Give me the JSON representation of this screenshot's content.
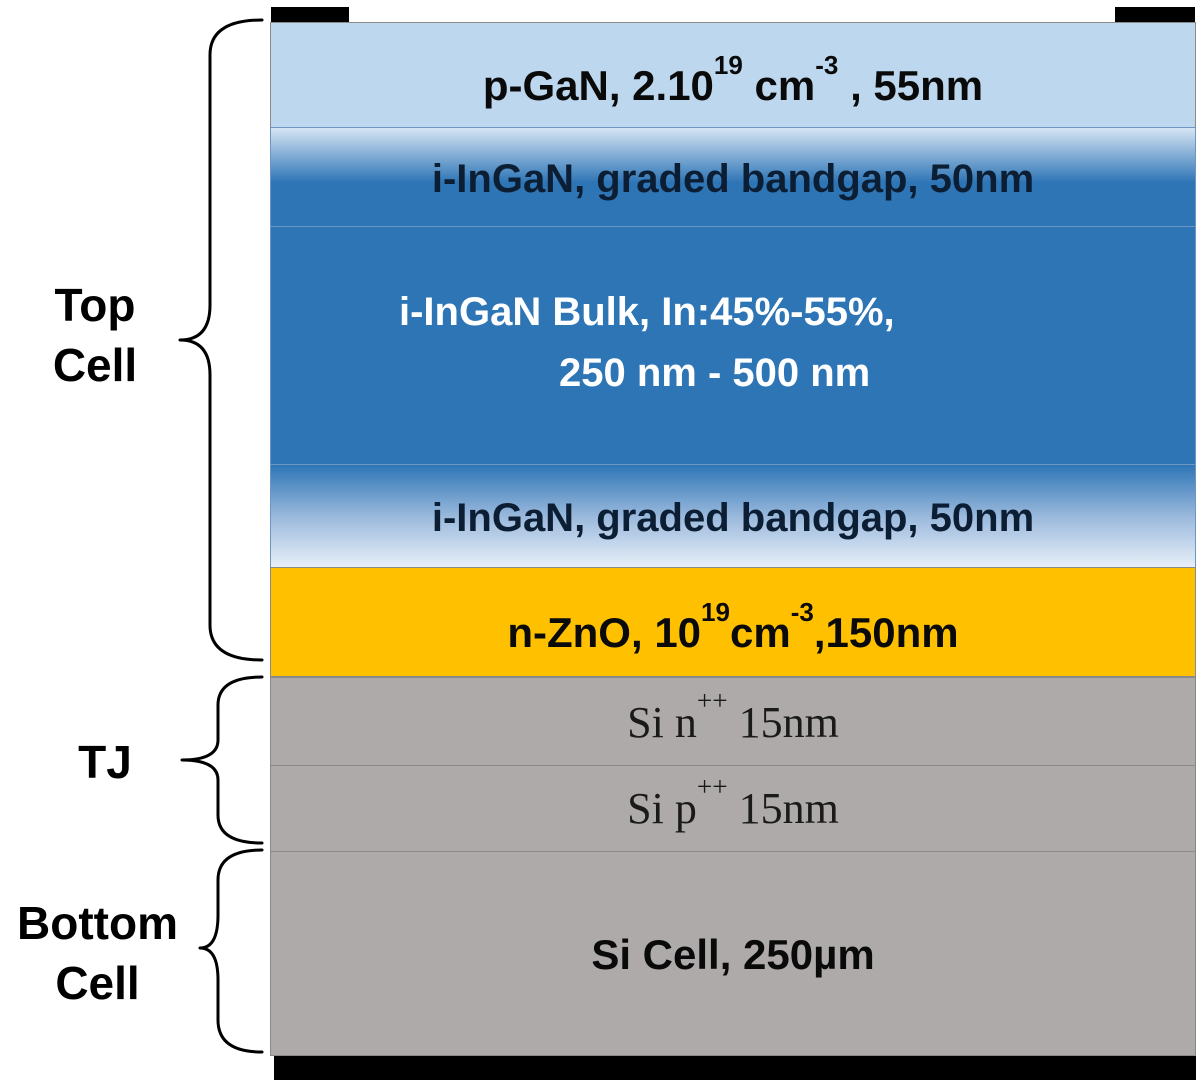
{
  "contacts": {
    "top_left": "metal contact",
    "top_right": "metal contact",
    "bottom": "metal contact"
  },
  "layers": {
    "p_gan": {
      "main": "p-GaN, 2.10",
      "exp1": "19",
      "unit": " cm",
      "exp2": "-3",
      "tail": " , 55nm",
      "color": "#bdd7ee"
    },
    "graded_top": {
      "label": "i-InGaN, graded bandgap, 50nm",
      "color_edge": "#d6e5f4",
      "color_core": "#2e75b6"
    },
    "bulk": {
      "line1": "i-InGaN Bulk, In:45%-55%,",
      "line2": "250 nm - 500 nm",
      "color": "#2e75b6"
    },
    "graded_bottom": {
      "label": "i-InGaN, graded bandgap, 50nm",
      "color_edge": "#e9f0f9",
      "color_core": "#2e75b6"
    },
    "n_zno": {
      "main": "n-ZnO, 10",
      "exp1": "19",
      "unit": "cm",
      "exp2": "-3",
      "tail": ",150nm",
      "color": "#ffc000"
    },
    "si_n": {
      "main": "Si n",
      "sup": "++",
      "tail": " 15nm",
      "color": "#aeaaaa"
    },
    "si_p": {
      "main": "Si p",
      "sup": "++",
      "tail": " 15nm",
      "color": "#aeaaaa"
    },
    "si_cell": {
      "label": "Si Cell, 250µm",
      "color": "#aeaaaa"
    }
  },
  "groups": {
    "top_cell": {
      "line1": "Top",
      "line2": "Cell"
    },
    "tj": {
      "line1": "TJ"
    },
    "bottom_cell": {
      "line1": "Bottom",
      "line2": "Cell"
    }
  }
}
